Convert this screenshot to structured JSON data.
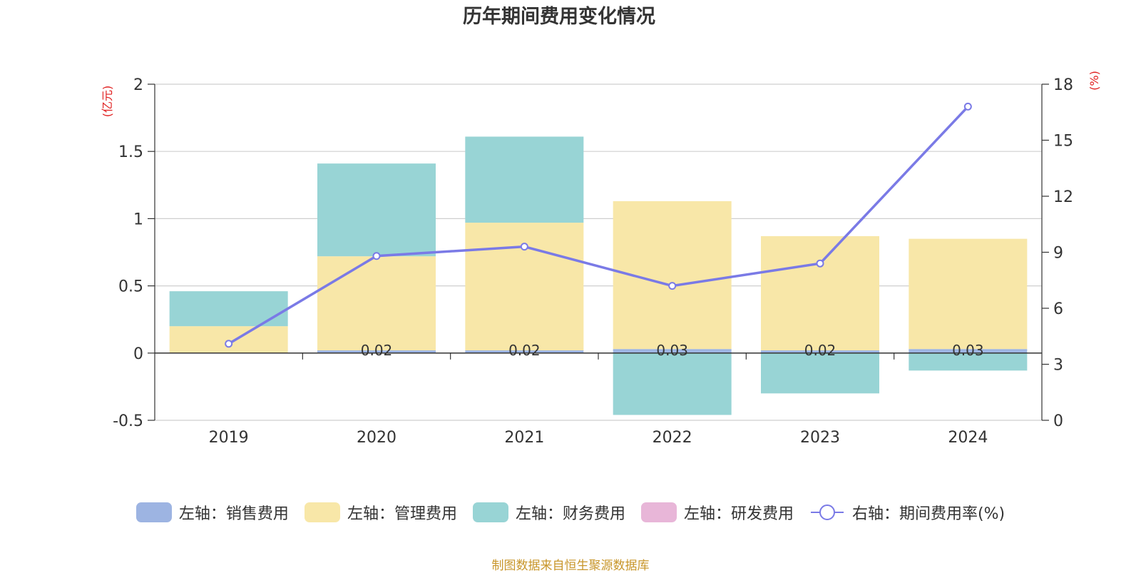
{
  "chart_data": {
    "type": "bar",
    "title": "历年期间费用变化情况",
    "left_unit": "(亿元)",
    "right_unit": "(%)",
    "categories": [
      "2019",
      "2020",
      "2021",
      "2022",
      "2023",
      "2024"
    ],
    "left_axis": {
      "ylim": [
        -0.5,
        2
      ],
      "ticks": [
        "-0.5",
        "0",
        "0.5",
        "1",
        "1.5",
        "2"
      ]
    },
    "right_axis": {
      "ylim": [
        0,
        18
      ],
      "ticks": [
        "0",
        "3",
        "6",
        "9",
        "12",
        "15",
        "18"
      ]
    },
    "series": [
      {
        "name": "左轴：销售费用",
        "axis": "left",
        "color": "#9db4e2",
        "values": [
          0,
          0.02,
          0.02,
          0.03,
          0.02,
          0.03
        ]
      },
      {
        "name": "左轴：管理费用",
        "axis": "left",
        "color": "#f8e7a8",
        "values": [
          0.2,
          0.7,
          0.95,
          1.1,
          0.85,
          0.82
        ]
      },
      {
        "name": "左轴：财务费用",
        "axis": "left",
        "color": "#98d4d5",
        "values": [
          0.26,
          0.69,
          0.64,
          -0.46,
          -0.3,
          -0.13
        ]
      },
      {
        "name": "左轴：研发费用",
        "axis": "left",
        "color": "#e8b6d8",
        "values": [
          0,
          0,
          0,
          0,
          0,
          0
        ]
      },
      {
        "name": "右轴：期间费用率(%)",
        "axis": "right",
        "type": "line",
        "color": "#7a7ae6",
        "values": [
          4.1,
          8.8,
          9.3,
          7.2,
          8.4,
          16.8
        ]
      }
    ],
    "bar_labels": [
      "",
      "0.02",
      "0.02",
      "0.03",
      "0.02",
      "0.03"
    ],
    "grid": true,
    "legend_position": "bottom"
  },
  "source": "制图数据来自恒生聚源数据库"
}
